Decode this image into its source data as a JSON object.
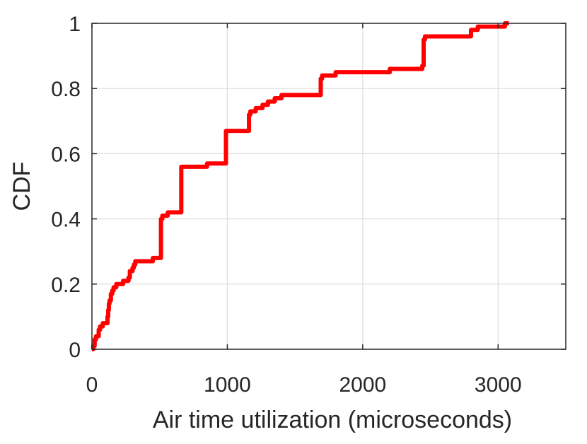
{
  "chart_data": {
    "type": "line",
    "title": "",
    "xlabel": "Air time utilization (microseconds)",
    "ylabel": "CDF",
    "xlim": [
      0,
      3500
    ],
    "ylim": [
      0,
      1
    ],
    "xticks": [
      0,
      1000,
      2000,
      3000
    ],
    "xtick_labels": [
      "0",
      "1000",
      "2000",
      "3000"
    ],
    "yticks": [
      0,
      0.2,
      0.4,
      0.6,
      0.8,
      1
    ],
    "ytick_labels": [
      "0",
      "0.2",
      "0.4",
      "0.6",
      "0.8",
      "1"
    ],
    "grid": true,
    "series": [
      {
        "color": "#ff0000",
        "step": true,
        "x": [
          0,
          10,
          20,
          30,
          50,
          60,
          80,
          110,
          115,
          120,
          125,
          130,
          140,
          150,
          160,
          170,
          180,
          200,
          230,
          240,
          270,
          280,
          300,
          310,
          320,
          350,
          400,
          450,
          500,
          510,
          520,
          540,
          560,
          580,
          600,
          660,
          680,
          700,
          800,
          850,
          900,
          950,
          980,
          990,
          1000,
          1050,
          1100,
          1150,
          1160,
          1170,
          1200,
          1210,
          1250,
          1260,
          1300,
          1310,
          1350,
          1400,
          1450,
          1500,
          1600,
          1680,
          1690,
          1700,
          1750,
          1800,
          1900,
          2000,
          2100,
          2150,
          2200,
          2300,
          2400,
          2430,
          2440,
          2450,
          2460,
          2500,
          2600,
          2700,
          2790,
          2800,
          2850,
          2900,
          2950,
          3000,
          3050,
          3080
        ],
        "y": [
          0,
          0.01,
          0.03,
          0.04,
          0.06,
          0.07,
          0.08,
          0.08,
          0.1,
          0.12,
          0.14,
          0.15,
          0.17,
          0.18,
          0.19,
          0.19,
          0.2,
          0.2,
          0.21,
          0.21,
          0.22,
          0.24,
          0.25,
          0.26,
          0.27,
          0.27,
          0.27,
          0.28,
          0.28,
          0.4,
          0.41,
          0.41,
          0.42,
          0.42,
          0.42,
          0.56,
          0.56,
          0.56,
          0.56,
          0.57,
          0.57,
          0.57,
          0.57,
          0.67,
          0.67,
          0.67,
          0.67,
          0.67,
          0.72,
          0.73,
          0.73,
          0.74,
          0.74,
          0.75,
          0.76,
          0.76,
          0.77,
          0.78,
          0.78,
          0.78,
          0.78,
          0.78,
          0.83,
          0.84,
          0.84,
          0.85,
          0.85,
          0.85,
          0.85,
          0.85,
          0.86,
          0.86,
          0.86,
          0.86,
          0.87,
          0.95,
          0.96,
          0.96,
          0.96,
          0.96,
          0.96,
          0.98,
          0.99,
          0.99,
          0.99,
          0.99,
          1.0,
          1.0
        ]
      }
    ]
  }
}
